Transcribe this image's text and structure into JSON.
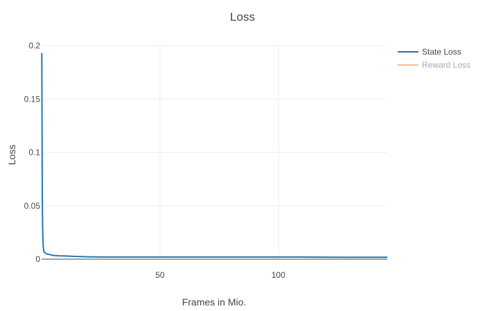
{
  "chart_data": {
    "type": "line",
    "title": "Loss",
    "xlabel": "Frames in Mio.",
    "ylabel": "Loss",
    "xlim": [
      0,
      146
    ],
    "ylim": [
      0,
      0.2
    ],
    "x_ticks": [
      50,
      100
    ],
    "x_tick_labels": [
      "50",
      "100"
    ],
    "y_ticks": [
      0,
      0.05,
      0.1,
      0.15,
      0.2
    ],
    "y_tick_labels": [
      "0",
      "0.05",
      "0.1",
      "0.15",
      "0.2"
    ],
    "grid": true,
    "legend_position": "top-right",
    "series": [
      {
        "name": "State Loss",
        "color": "#1f77b4",
        "visible": true,
        "x": [
          0.1,
          0.2,
          0.3,
          0.4,
          0.5,
          0.7,
          1,
          1.5,
          2,
          3,
          4,
          5,
          7,
          10,
          15,
          20,
          25,
          30,
          40,
          50,
          60,
          70,
          80,
          90,
          100,
          110,
          120,
          130,
          140,
          146
        ],
        "y": [
          0.193,
          0.12,
          0.06,
          0.035,
          0.024,
          0.012,
          0.007,
          0.006,
          0.005,
          0.0045,
          0.004,
          0.0035,
          0.0032,
          0.003,
          0.0025,
          0.0022,
          0.002,
          0.002,
          0.002,
          0.002,
          0.002,
          0.002,
          0.002,
          0.002,
          0.002,
          0.002,
          0.0019,
          0.0018,
          0.0018,
          0.0018
        ]
      },
      {
        "name": "Reward Loss",
        "color": "#ffbb88",
        "visible": false,
        "x": [],
        "y": []
      }
    ]
  }
}
